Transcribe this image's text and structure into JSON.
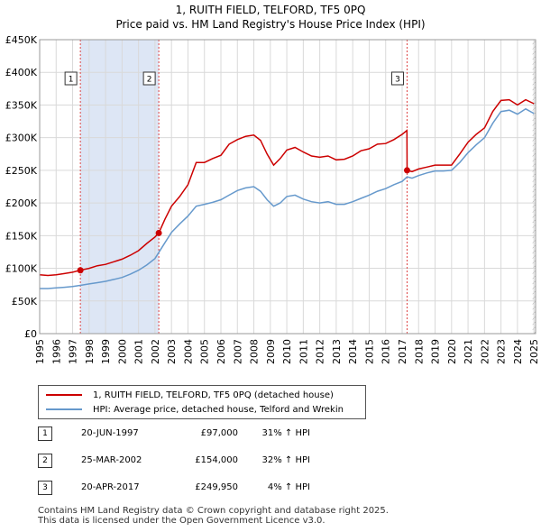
{
  "title": {
    "line1": "1, RUITH FIELD, TELFORD, TF5 0PQ",
    "line2": "Price paid vs. HM Land Registry's House Price Index (HPI)"
  },
  "chart_data": {
    "type": "line",
    "title": "Price paid vs. HM Land Registry's House Price Index (HPI)",
    "xlabel": "",
    "ylabel": "",
    "xlim": [
      1995.0,
      2025.1
    ],
    "ylim": [
      0,
      450000
    ],
    "x_ticks": [
      "1995",
      "1996",
      "1997",
      "1998",
      "1999",
      "2000",
      "2001",
      "2002",
      "2003",
      "2004",
      "2005",
      "2006",
      "2007",
      "2008",
      "2009",
      "2010",
      "2011",
      "2012",
      "2013",
      "2014",
      "2015",
      "2016",
      "2017",
      "2018",
      "2019",
      "2020",
      "2021",
      "2022",
      "2023",
      "2024",
      "2025"
    ],
    "y_ticks": [
      {
        "value": 0,
        "label": "£0"
      },
      {
        "value": 50000,
        "label": "£50K"
      },
      {
        "value": 100000,
        "label": "£100K"
      },
      {
        "value": 150000,
        "label": "£150K"
      },
      {
        "value": 200000,
        "label": "£200K"
      },
      {
        "value": 250000,
        "label": "£250K"
      },
      {
        "value": 300000,
        "label": "£300K"
      },
      {
        "value": 350000,
        "label": "£350K"
      },
      {
        "value": 400000,
        "label": "£400K"
      },
      {
        "value": 450000,
        "label": "£450K"
      }
    ],
    "grid": true,
    "colors": {
      "price": "#cc0000",
      "hpi": "#6699cc",
      "shade": "#dde6f5",
      "marker": "#cc0000",
      "vline": "#dd4444"
    },
    "series": [
      {
        "name": "1, RUITH FIELD, TELFORD, TF5 0PQ (detached house)",
        "color": "#cc0000",
        "points": [
          [
            1995.0,
            90000
          ],
          [
            1995.5,
            89000
          ],
          [
            1996.0,
            90000
          ],
          [
            1996.5,
            92000
          ],
          [
            1997.0,
            94000
          ],
          [
            1997.47,
            97000
          ],
          [
            1998.0,
            100000
          ],
          [
            1998.5,
            104000
          ],
          [
            1999.0,
            106000
          ],
          [
            1999.5,
            110000
          ],
          [
            2000.0,
            114000
          ],
          [
            2000.5,
            120000
          ],
          [
            2001.0,
            127000
          ],
          [
            2001.5,
            138000
          ],
          [
            2002.0,
            148000
          ],
          [
            2002.23,
            154000
          ],
          [
            2002.6,
            175000
          ],
          [
            2003.0,
            195000
          ],
          [
            2003.5,
            210000
          ],
          [
            2004.0,
            228000
          ],
          [
            2004.5,
            262000
          ],
          [
            2005.0,
            262000
          ],
          [
            2005.5,
            268000
          ],
          [
            2006.0,
            273000
          ],
          [
            2006.5,
            290000
          ],
          [
            2007.0,
            297000
          ],
          [
            2007.5,
            302000
          ],
          [
            2008.0,
            304000
          ],
          [
            2008.4,
            296000
          ],
          [
            2008.8,
            275000
          ],
          [
            2009.2,
            258000
          ],
          [
            2009.6,
            268000
          ],
          [
            2010.0,
            281000
          ],
          [
            2010.5,
            285000
          ],
          [
            2011.0,
            278000
          ],
          [
            2011.5,
            272000
          ],
          [
            2012.0,
            270000
          ],
          [
            2012.5,
            272000
          ],
          [
            2013.0,
            266000
          ],
          [
            2013.5,
            267000
          ],
          [
            2014.0,
            272000
          ],
          [
            2014.5,
            280000
          ],
          [
            2015.0,
            283000
          ],
          [
            2015.5,
            290000
          ],
          [
            2016.0,
            291000
          ],
          [
            2016.5,
            297000
          ],
          [
            2017.0,
            305000
          ],
          [
            2017.29,
            311000
          ],
          [
            2017.3,
            249950
          ],
          [
            2017.6,
            248000
          ],
          [
            2018.0,
            252000
          ],
          [
            2018.5,
            255000
          ],
          [
            2019.0,
            258000
          ],
          [
            2019.5,
            258000
          ],
          [
            2020.0,
            258000
          ],
          [
            2020.5,
            275000
          ],
          [
            2021.0,
            293000
          ],
          [
            2021.5,
            305000
          ],
          [
            2022.0,
            315000
          ],
          [
            2022.5,
            340000
          ],
          [
            2023.0,
            357000
          ],
          [
            2023.5,
            358000
          ],
          [
            2024.0,
            350000
          ],
          [
            2024.5,
            358000
          ],
          [
            2025.0,
            352000
          ]
        ]
      },
      {
        "name": "HPI: Average price, detached house, Telford and Wrekin",
        "color": "#6699cc",
        "points": [
          [
            1995.0,
            69000
          ],
          [
            1995.5,
            69000
          ],
          [
            1996.0,
            70000
          ],
          [
            1996.5,
            71000
          ],
          [
            1997.0,
            72000
          ],
          [
            1997.5,
            74000
          ],
          [
            1998.0,
            76000
          ],
          [
            1998.5,
            78000
          ],
          [
            1999.0,
            80000
          ],
          [
            1999.5,
            83000
          ],
          [
            2000.0,
            86000
          ],
          [
            2000.5,
            91000
          ],
          [
            2001.0,
            97000
          ],
          [
            2001.5,
            105000
          ],
          [
            2002.0,
            115000
          ],
          [
            2002.5,
            135000
          ],
          [
            2003.0,
            155000
          ],
          [
            2003.5,
            168000
          ],
          [
            2004.0,
            180000
          ],
          [
            2004.5,
            195000
          ],
          [
            2005.0,
            198000
          ],
          [
            2005.5,
            201000
          ],
          [
            2006.0,
            205000
          ],
          [
            2006.5,
            212000
          ],
          [
            2007.0,
            219000
          ],
          [
            2007.5,
            223000
          ],
          [
            2008.0,
            225000
          ],
          [
            2008.4,
            218000
          ],
          [
            2008.8,
            205000
          ],
          [
            2009.2,
            195000
          ],
          [
            2009.6,
            200000
          ],
          [
            2010.0,
            210000
          ],
          [
            2010.5,
            212000
          ],
          [
            2011.0,
            206000
          ],
          [
            2011.5,
            202000
          ],
          [
            2012.0,
            200000
          ],
          [
            2012.5,
            202000
          ],
          [
            2013.0,
            198000
          ],
          [
            2013.5,
            198000
          ],
          [
            2014.0,
            202000
          ],
          [
            2014.5,
            207000
          ],
          [
            2015.0,
            212000
          ],
          [
            2015.5,
            218000
          ],
          [
            2016.0,
            222000
          ],
          [
            2016.5,
            228000
          ],
          [
            2017.0,
            233000
          ],
          [
            2017.3,
            240000
          ],
          [
            2017.6,
            238000
          ],
          [
            2018.0,
            242000
          ],
          [
            2018.5,
            246000
          ],
          [
            2019.0,
            249000
          ],
          [
            2019.5,
            249000
          ],
          [
            2020.0,
            250000
          ],
          [
            2020.5,
            262000
          ],
          [
            2021.0,
            277000
          ],
          [
            2021.5,
            289000
          ],
          [
            2022.0,
            300000
          ],
          [
            2022.5,
            322000
          ],
          [
            2023.0,
            340000
          ],
          [
            2023.5,
            342000
          ],
          [
            2024.0,
            336000
          ],
          [
            2024.5,
            344000
          ],
          [
            2025.0,
            337000
          ]
        ]
      }
    ],
    "shaded_ranges": [
      [
        1997.47,
        2002.23
      ]
    ],
    "sales": [
      {
        "label": "1",
        "x": 1997.47,
        "value": 97000
      },
      {
        "label": "2",
        "x": 2002.23,
        "value": 154000
      },
      {
        "label": "3",
        "x": 2017.3,
        "value": 249950
      }
    ],
    "hatch_from": 2024.92
  },
  "legend": {
    "price_label": "1, RUITH FIELD, TELFORD, TF5 0PQ (detached house)",
    "hpi_label": "HPI: Average price, detached house, Telford and Wrekin"
  },
  "transactions": [
    {
      "num": "1",
      "date": "20-JUN-1997",
      "price": "£97,000",
      "hpi": "31% ↑ HPI"
    },
    {
      "num": "2",
      "date": "25-MAR-2002",
      "price": "£154,000",
      "hpi": "32% ↑ HPI"
    },
    {
      "num": "3",
      "date": "20-APR-2017",
      "price": "£249,950",
      "hpi": "4% ↑ HPI"
    }
  ],
  "footer": {
    "line1": "Contains HM Land Registry data © Crown copyright and database right 2025.",
    "line2": "This data is licensed under the Open Government Licence v3.0."
  }
}
